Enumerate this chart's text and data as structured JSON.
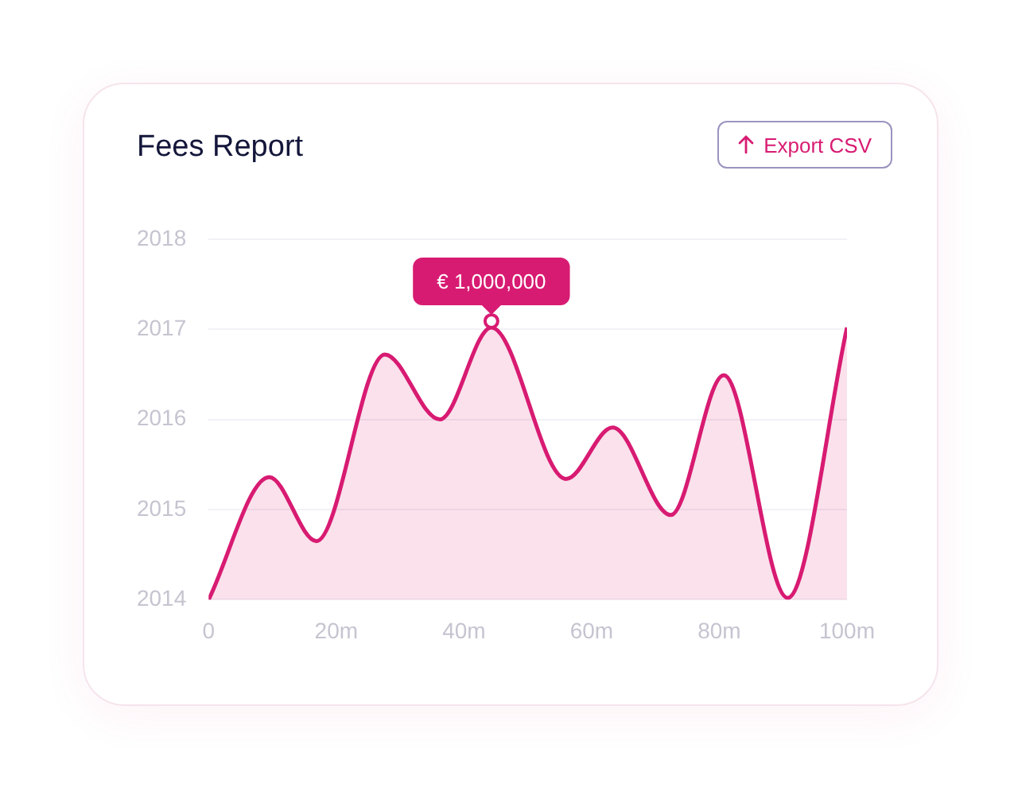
{
  "chart_data": {
    "type": "area",
    "title": "Fees Report",
    "x": [
      0,
      9.5,
      16.9,
      27.6,
      36.2,
      44.3,
      56,
      63.3,
      72.4,
      80.7,
      90.7,
      100
    ],
    "series": [
      {
        "color": "#d81b72",
        "values": [
          2014.0,
          2015.36,
          2014.65,
          2016.72,
          2016.0,
          2017.02,
          2015.34,
          2015.91,
          2014.94,
          2016.49,
          2014.02,
          2017.02
        ]
      }
    ],
    "xlim": [
      0,
      100
    ],
    "xticks": [
      0,
      {
        "value": 20,
        "label": "20m"
      },
      {
        "value": 40,
        "label": "40m"
      },
      {
        "value": 60,
        "label": "60m"
      },
      {
        "value": 80,
        "label": "80m"
      },
      {
        "value": 100,
        "label": "100m"
      }
    ],
    "ylim": [
      2014,
      2018
    ],
    "yticks": [
      2014,
      2015,
      2016,
      2017,
      2018
    ],
    "grid": "y",
    "legend": false,
    "marker": "none",
    "line_style": "solid",
    "annotations": [
      {
        "text": "€ 1,000,000",
        "x": 44.3,
        "y": 2017.02
      },
      "Export CSV"
    ]
  }
}
